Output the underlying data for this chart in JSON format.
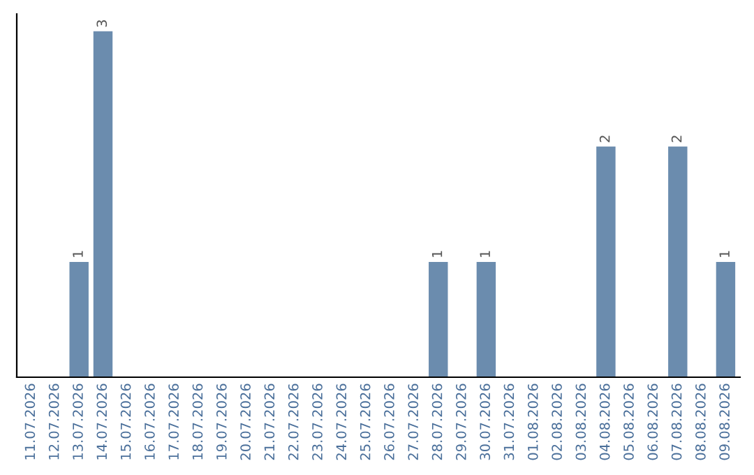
{
  "chart_data": {
    "type": "bar",
    "categories": [
      "11.07.2026",
      "12.07.2026",
      "13.07.2026",
      "14.07.2026",
      "15.07.2026",
      "16.07.2026",
      "17.07.2026",
      "18.07.2026",
      "19.07.2026",
      "20.07.2026",
      "21.07.2026",
      "22.07.2026",
      "23.07.2026",
      "24.07.2026",
      "25.07.2026",
      "26.07.2026",
      "27.07.2026",
      "28.07.2026",
      "29.07.2026",
      "30.07.2026",
      "31.07.2026",
      "01.08.2026",
      "02.08.2026",
      "03.08.2026",
      "04.08.2026",
      "05.08.2026",
      "06.08.2026",
      "07.08.2026",
      "08.08.2026",
      "09.08.2026"
    ],
    "values": [
      0,
      0,
      1,
      3,
      0,
      0,
      0,
      0,
      0,
      0,
      0,
      0,
      0,
      0,
      0,
      0,
      0,
      1,
      0,
      1,
      0,
      0,
      0,
      0,
      2,
      0,
      0,
      2,
      0,
      1
    ],
    "value_labels": [
      null,
      null,
      "1",
      "3",
      null,
      null,
      null,
      null,
      null,
      null,
      null,
      null,
      null,
      null,
      null,
      null,
      null,
      "1",
      null,
      "1",
      null,
      null,
      null,
      null,
      "2",
      null,
      null,
      "2",
      null,
      "1"
    ],
    "color": "#6b8cae",
    "grid": false,
    "legend": false
  }
}
